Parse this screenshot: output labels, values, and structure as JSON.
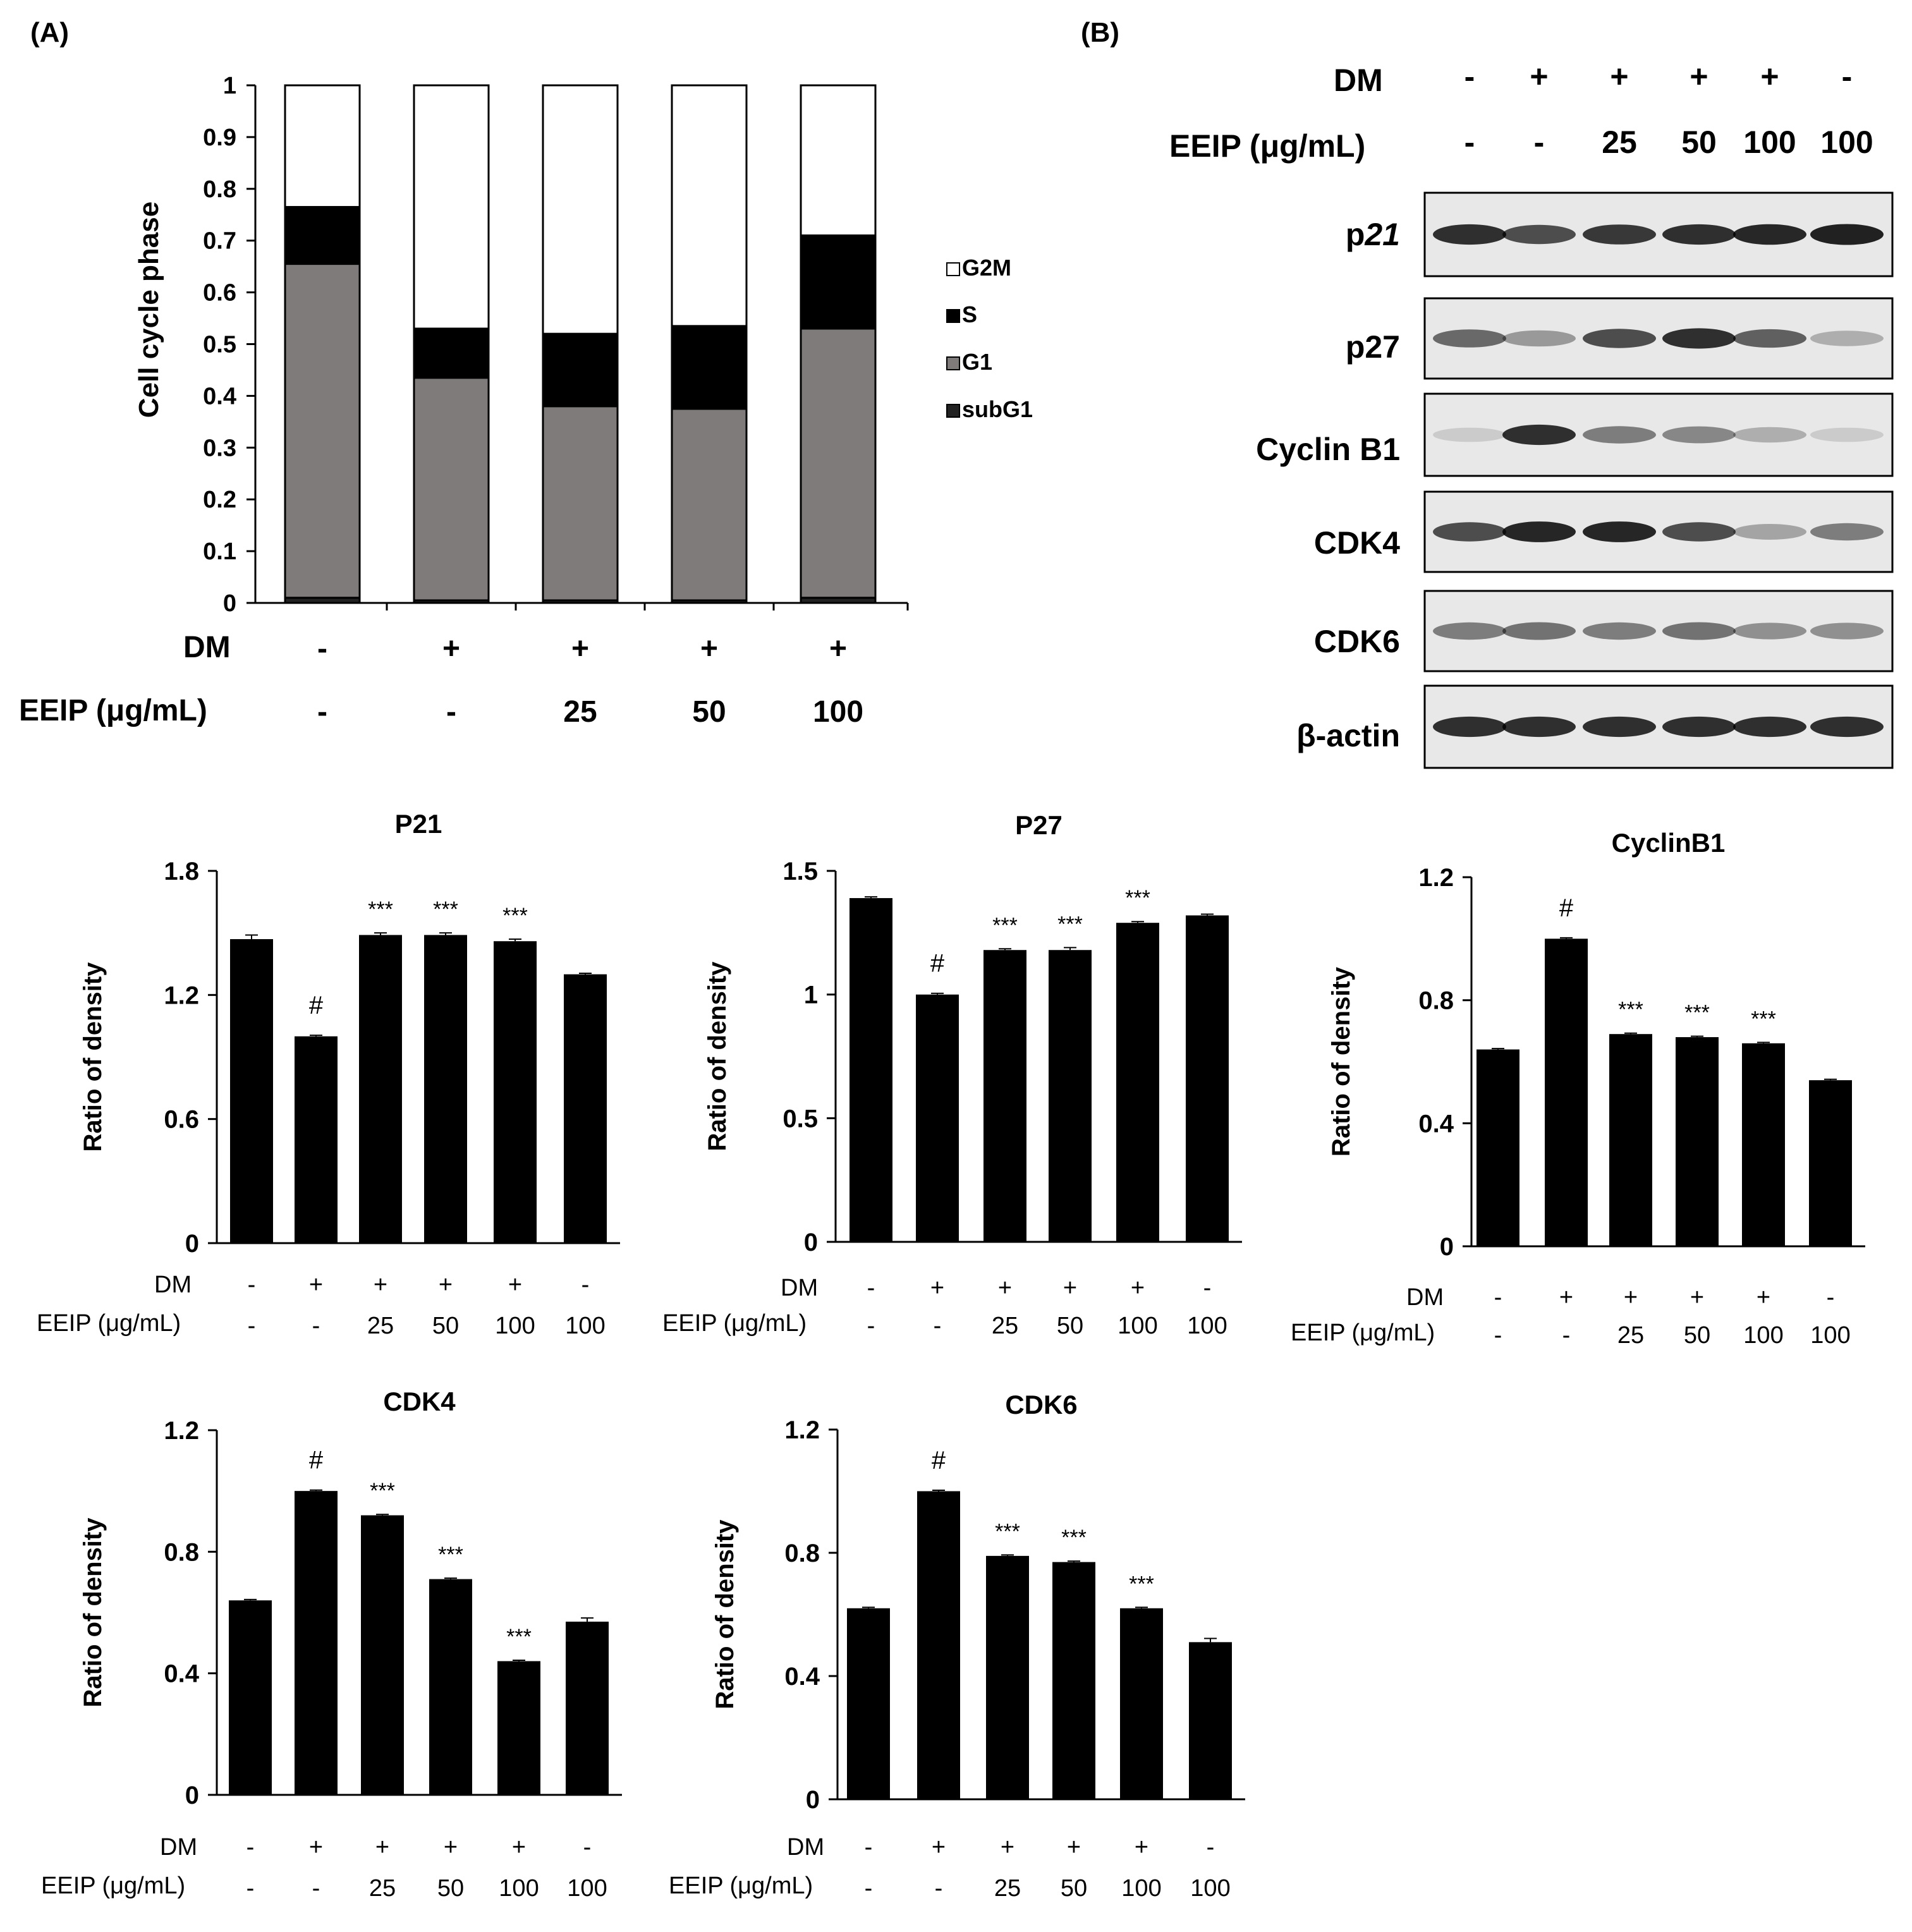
{
  "panels": {
    "a": "(A)",
    "b": "(B)"
  },
  "row_labels": {
    "dm": "DM",
    "eeip": "EEIP (μg/mL)",
    "eeip_small": "EEIP  (μg/mL)"
  },
  "colors": {
    "g2m": "#ffffff",
    "s": "#000000",
    "g1": "#7f7b7b",
    "subg1": "#222222",
    "bar": "#000000",
    "blot_bg": "#e8e8e8"
  },
  "chart_data": [
    {
      "id": "cell-cycle",
      "type": "bar",
      "stacked": true,
      "title": "",
      "ylabel": "Cell cycle phase",
      "ylim": [
        0,
        1
      ],
      "yticks": [
        "0",
        "0.1",
        "0.2",
        "0.3",
        "0.4",
        "0.5",
        "0.6",
        "0.7",
        "0.8",
        "0.9",
        "1"
      ],
      "dm": [
        "-",
        "+",
        "+",
        "+",
        "+"
      ],
      "eeip": [
        "-",
        "-",
        "25",
        "50",
        "100"
      ],
      "legend": [
        "G2M",
        "S",
        "G1",
        "subG1"
      ],
      "series": [
        {
          "name": "subG1",
          "values": [
            0.01,
            0.005,
            0.005,
            0.005,
            0.01
          ]
        },
        {
          "name": "G1",
          "values": [
            0.645,
            0.43,
            0.375,
            0.37,
            0.52
          ]
        },
        {
          "name": "S",
          "values": [
            0.11,
            0.095,
            0.14,
            0.16,
            0.18
          ]
        },
        {
          "name": "G2M",
          "values": [
            0.235,
            0.47,
            0.48,
            0.465,
            0.29
          ]
        }
      ]
    },
    {
      "id": "p21",
      "type": "bar",
      "title": "P21",
      "ylabel": "Ratio of density",
      "ylim": [
        0,
        1.8
      ],
      "yticks": [
        "0",
        "0.6",
        "1.2",
        "1.8"
      ],
      "values": [
        1.47,
        1.0,
        1.49,
        1.49,
        1.46,
        1.3
      ],
      "errors": [
        0.02,
        0.005,
        0.01,
        0.01,
        0.01,
        0.005
      ],
      "annotations": [
        "",
        "#",
        "***",
        "***",
        "***",
        ""
      ],
      "dm": [
        "-",
        "+",
        "+",
        "+",
        "+",
        "-"
      ],
      "eeip": [
        "-",
        "-",
        "25",
        "50",
        "100",
        "100"
      ]
    },
    {
      "id": "p27",
      "type": "bar",
      "title": "P27",
      "ylabel": "Ratio of density",
      "ylim": [
        0,
        1.5
      ],
      "yticks": [
        "0",
        "0.5",
        "1",
        "1.5"
      ],
      "values": [
        1.39,
        1.0,
        1.18,
        1.18,
        1.29,
        1.32
      ],
      "errors": [
        0.005,
        0.005,
        0.005,
        0.01,
        0.005,
        0.005
      ],
      "annotations": [
        "",
        "#",
        "***",
        "***",
        "***",
        ""
      ],
      "dm": [
        "-",
        "+",
        "+",
        "+",
        "+",
        "-"
      ],
      "eeip": [
        "-",
        "-",
        "25",
        "50",
        "100",
        "100"
      ]
    },
    {
      "id": "cyclinb1",
      "type": "bar",
      "title": "CyclinB1",
      "ylabel": "Ratio of density",
      "ylim": [
        0,
        1.2
      ],
      "yticks": [
        "0",
        "0.4",
        "0.8",
        "1.2"
      ],
      "values": [
        0.64,
        1.0,
        0.69,
        0.68,
        0.66,
        0.54
      ],
      "errors": [
        0.003,
        0.003,
        0.003,
        0.003,
        0.003,
        0.003
      ],
      "annotations": [
        "",
        "#",
        "***",
        "***",
        "***",
        ""
      ],
      "dm": [
        "-",
        "+",
        "+",
        "+",
        "+",
        "-"
      ],
      "eeip": [
        "-",
        "-",
        "25",
        "50",
        "100",
        "100"
      ]
    },
    {
      "id": "cdk4",
      "type": "bar",
      "title": "CDK4",
      "ylabel": "Ratio of density",
      "ylim": [
        0,
        1.2
      ],
      "yticks": [
        "0",
        "0.4",
        "0.8",
        "1.2"
      ],
      "values": [
        0.64,
        1.0,
        0.92,
        0.71,
        0.44,
        0.57
      ],
      "errors": [
        0.003,
        0.003,
        0.003,
        0.003,
        0.003,
        0.012
      ],
      "annotations": [
        "",
        "#",
        "***",
        "***",
        "***",
        ""
      ],
      "dm": [
        "-",
        "+",
        "+",
        "+",
        "+",
        "-"
      ],
      "eeip": [
        "-",
        "-",
        "25",
        "50",
        "100",
        "100"
      ]
    },
    {
      "id": "cdk6",
      "type": "bar",
      "title": "CDK6",
      "ylabel": "Ratio of density",
      "ylim": [
        0,
        1.2
      ],
      "yticks": [
        "0",
        "0.4",
        "0.8",
        "1.2"
      ],
      "values": [
        0.62,
        1.0,
        0.79,
        0.77,
        0.62,
        0.51
      ],
      "errors": [
        0.003,
        0.003,
        0.003,
        0.003,
        0.003,
        0.012
      ],
      "annotations": [
        "",
        "#",
        "***",
        "***",
        "***",
        ""
      ],
      "dm": [
        "-",
        "+",
        "+",
        "+",
        "+",
        "-"
      ],
      "eeip": [
        "-",
        "-",
        "25",
        "50",
        "100",
        "100"
      ]
    }
  ],
  "blot": {
    "dm": [
      "-",
      "+",
      "+",
      "+",
      "+",
      "-"
    ],
    "eeip": [
      "-",
      "-",
      "25",
      "50",
      "100",
      "100"
    ],
    "proteins": [
      {
        "name": "p",
        "italic": "21",
        "intensity": [
          0.85,
          0.7,
          0.8,
          0.85,
          0.88,
          0.92
        ]
      },
      {
        "name": "p27",
        "italic": "",
        "intensity": [
          0.55,
          0.3,
          0.7,
          0.85,
          0.6,
          0.2
        ]
      },
      {
        "name": "Cyclin B1",
        "italic": "",
        "intensity": [
          0.05,
          0.85,
          0.45,
          0.4,
          0.2,
          0.05
        ]
      },
      {
        "name": "CDK4",
        "italic": "",
        "intensity": [
          0.7,
          0.9,
          0.9,
          0.7,
          0.25,
          0.45
        ]
      },
      {
        "name": "CDK6",
        "italic": "",
        "intensity": [
          0.45,
          0.5,
          0.45,
          0.5,
          0.35,
          0.35
        ]
      },
      {
        "name": "β-actin",
        "italic": "",
        "intensity": [
          0.85,
          0.85,
          0.85,
          0.85,
          0.85,
          0.85
        ]
      }
    ]
  }
}
